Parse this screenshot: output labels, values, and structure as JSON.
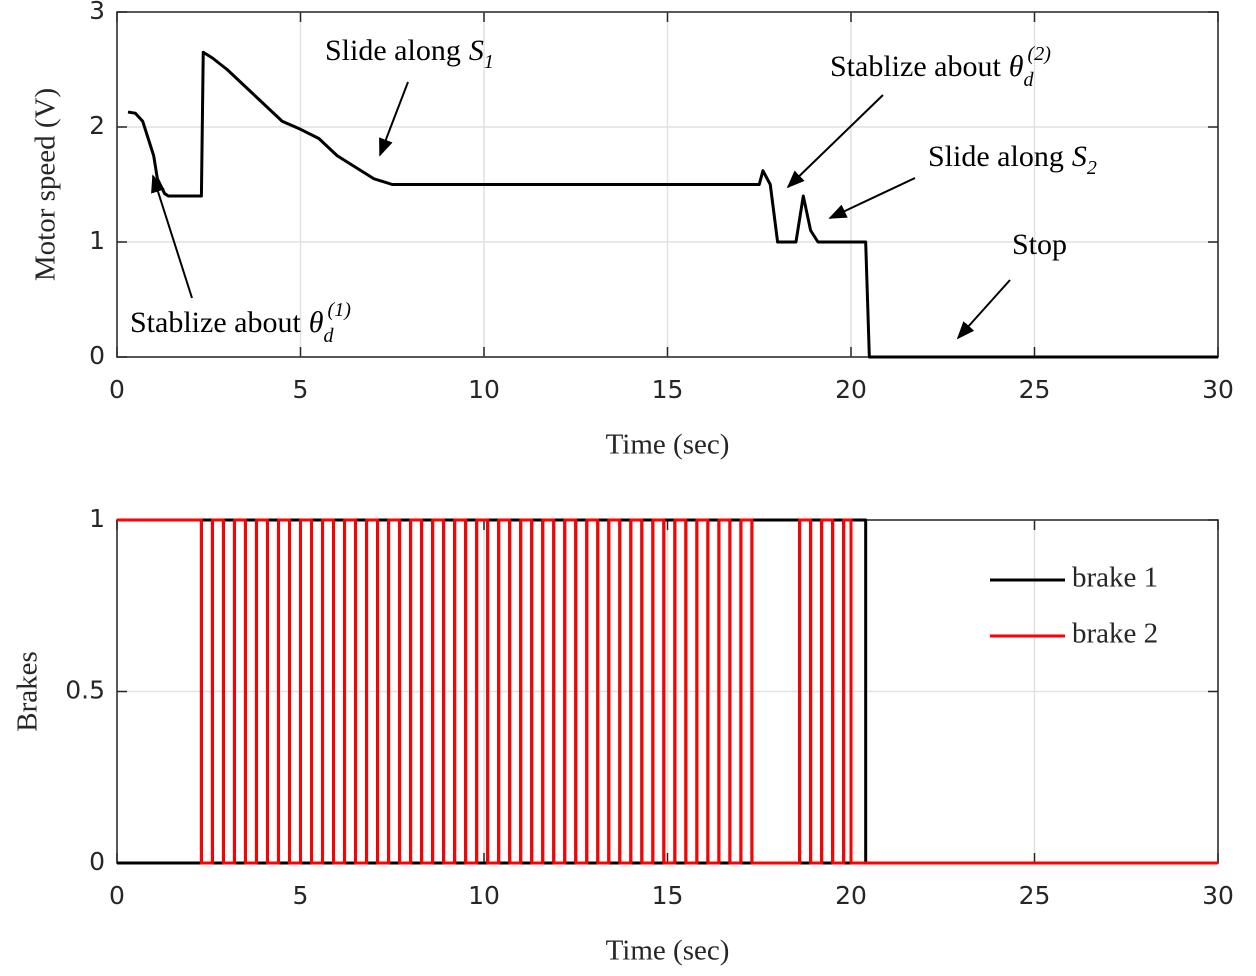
{
  "chart_data": [
    {
      "type": "line",
      "xlabel": "Time (sec)",
      "ylabel": "Motor speed (V)",
      "x": [
        0.3,
        0.5,
        0.7,
        0.9,
        1.0,
        1.1,
        1.3,
        1.4,
        2.3,
        2.35,
        2.6,
        3.0,
        3.5,
        4.0,
        4.5,
        5.0,
        5.5,
        6.0,
        6.5,
        7.0,
        7.5,
        17.5,
        17.6,
        17.8,
        18.0,
        18.5,
        18.7,
        18.9,
        19.1,
        20.4,
        20.5,
        30
      ],
      "values": [
        2.13,
        2.12,
        2.05,
        1.85,
        1.75,
        1.55,
        1.42,
        1.4,
        1.4,
        2.65,
        2.6,
        2.5,
        2.35,
        2.2,
        2.05,
        1.98,
        1.9,
        1.75,
        1.65,
        1.55,
        1.5,
        1.5,
        1.62,
        1.5,
        1.0,
        1.0,
        1.4,
        1.1,
        1.0,
        1.0,
        0,
        0
      ],
      "color": "#000000",
      "xlim": [
        0,
        30
      ],
      "xticks": [
        0,
        5,
        10,
        15,
        20,
        25,
        30
      ],
      "ylim": [
        0,
        3
      ],
      "yticks": [
        0,
        1,
        2,
        3
      ],
      "grid": true,
      "annotations": [
        {
          "text": "Slide along",
          "symbol": "S",
          "sub": "1"
        },
        {
          "text": "Stablize about",
          "symbol": "θ",
          "sub": "d",
          "sup": "(1)"
        },
        {
          "text": "Stablize about",
          "symbol": "θ",
          "sub": "d",
          "sup": "(2)"
        },
        {
          "text": "Slide along",
          "symbol": "S",
          "sub": "2"
        },
        {
          "text": "Stop"
        }
      ]
    },
    {
      "type": "line",
      "step": "post",
      "xlabel": "Time (sec)",
      "ylabel": "Brakes",
      "x": [
        0,
        2.3,
        2.6,
        2.9,
        3.2,
        3.5,
        3.8,
        4.1,
        4.4,
        4.7,
        5.0,
        5.3,
        5.6,
        5.9,
        6.2,
        6.5,
        6.8,
        7.1,
        7.4,
        7.7,
        8.0,
        8.3,
        8.6,
        8.9,
        9.2,
        9.5,
        9.8,
        10.1,
        10.4,
        10.7,
        11.0,
        11.3,
        11.6,
        11.9,
        12.2,
        12.5,
        12.8,
        13.1,
        13.4,
        13.7,
        14.0,
        14.3,
        14.6,
        14.9,
        15.2,
        15.5,
        15.8,
        16.1,
        16.4,
        16.7,
        17.0,
        17.3,
        18.6,
        18.9,
        19.2,
        19.5,
        19.8,
        20.0,
        20.4,
        30
      ],
      "series": [
        {
          "name": "brake 1",
          "color": "#000000",
          "values": [
            0,
            1,
            0,
            1,
            0,
            1,
            0,
            1,
            0,
            1,
            0,
            1,
            0,
            1,
            0,
            1,
            0,
            1,
            0,
            1,
            0,
            1,
            0,
            1,
            0,
            1,
            0,
            1,
            0,
            1,
            0,
            1,
            0,
            1,
            0,
            1,
            0,
            1,
            0,
            1,
            0,
            1,
            0,
            1,
            0,
            1,
            0,
            1,
            0,
            1,
            0,
            1,
            0,
            1,
            0,
            1,
            0,
            1,
            0,
            0
          ]
        },
        {
          "name": "brake 2",
          "color": "#ff0000",
          "values": [
            1,
            0,
            1,
            0,
            1,
            0,
            1,
            0,
            1,
            0,
            1,
            0,
            1,
            0,
            1,
            0,
            1,
            0,
            1,
            0,
            1,
            0,
            1,
            0,
            1,
            0,
            1,
            0,
            1,
            0,
            1,
            0,
            1,
            0,
            1,
            0,
            1,
            0,
            1,
            0,
            1,
            0,
            1,
            0,
            1,
            0,
            1,
            0,
            1,
            0,
            1,
            0,
            1,
            0,
            1,
            0,
            1,
            0,
            0,
            0
          ]
        }
      ],
      "xlim": [
        0,
        30
      ],
      "xticks": [
        0,
        5,
        10,
        15,
        20,
        25,
        30
      ],
      "ylim": [
        0,
        1
      ],
      "yticks": [
        0,
        0.5,
        1
      ],
      "grid": true,
      "legend": "northeast"
    }
  ]
}
